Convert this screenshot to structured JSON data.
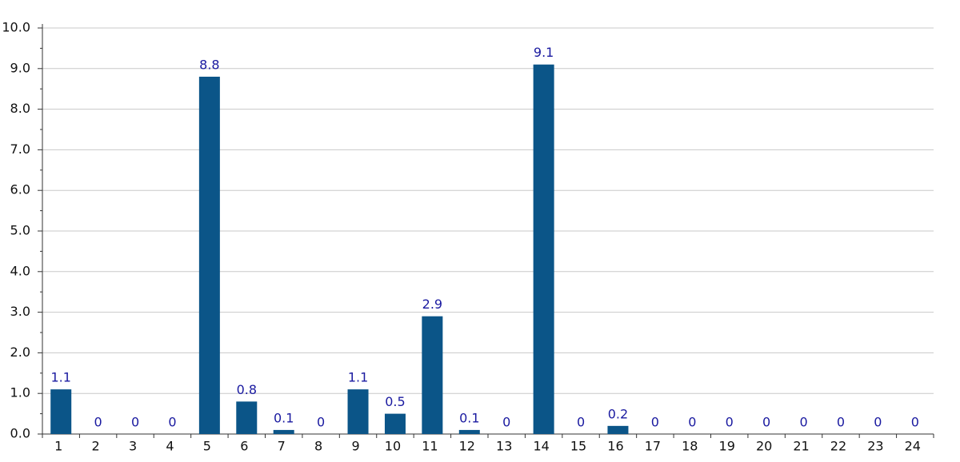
{
  "chart_data": {
    "type": "bar",
    "categories": [
      "1",
      "2",
      "3",
      "4",
      "5",
      "6",
      "7",
      "8",
      "9",
      "10",
      "11",
      "12",
      "13",
      "14",
      "15",
      "16",
      "17",
      "18",
      "19",
      "20",
      "21",
      "22",
      "23",
      "24"
    ],
    "values": [
      1.1,
      0,
      0,
      0,
      8.8,
      0.8,
      0.1,
      0,
      1.1,
      0.5,
      2.9,
      0.1,
      0,
      9.1,
      0,
      0.2,
      0,
      0,
      0,
      0,
      0,
      0,
      0,
      0
    ],
    "color": "#0b5588",
    "ylim": [
      0,
      10
    ],
    "yticks": [
      {
        "value": 0,
        "label": "0.0"
      },
      {
        "value": 1,
        "label": "1.0"
      },
      {
        "value": 2,
        "label": "2.0"
      },
      {
        "value": 3,
        "label": "3.0"
      },
      {
        "value": 4,
        "label": "4.0"
      },
      {
        "value": 5,
        "label": "5.0"
      },
      {
        "value": 6,
        "label": "6.0"
      },
      {
        "value": 7,
        "label": "7.0"
      },
      {
        "value": 8,
        "label": "8.0"
      },
      {
        "value": 9,
        "label": "9.0"
      },
      {
        "value": 10,
        "label": "10.0"
      }
    ],
    "grid": true
  }
}
